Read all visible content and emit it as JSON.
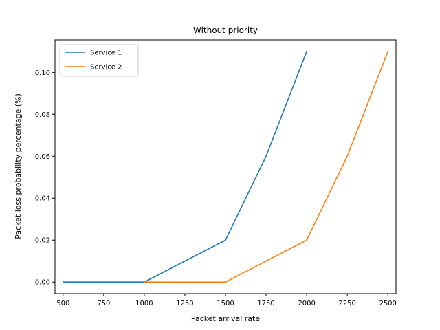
{
  "chart_data": {
    "type": "line",
    "title": "Without priority",
    "xlabel": "Packet arrival rate",
    "ylabel": "Packet loss probability percentage (%)",
    "xlim": [
      450,
      2550
    ],
    "ylim": [
      -0.0055,
      0.1155
    ],
    "xticks": [
      500,
      750,
      1000,
      1250,
      1500,
      1750,
      2000,
      2250,
      2500
    ],
    "yticks": [
      0.0,
      0.02,
      0.04,
      0.06,
      0.08,
      0.1
    ],
    "ytick_labels": [
      "0.00",
      "0.02",
      "0.04",
      "0.06",
      "0.08",
      "0.10"
    ],
    "legend_position": "top-left",
    "grid": false,
    "series": [
      {
        "name": "Service 1",
        "color": "#1f77b4",
        "x": [
          500,
          1000,
          1500,
          1750,
          2000
        ],
        "y": [
          0.0,
          0.0,
          0.02,
          0.06,
          0.11
        ]
      },
      {
        "name": "Service 2",
        "color": "#ff7f0e",
        "x": [
          1000,
          1500,
          2000,
          2250,
          2500
        ],
        "y": [
          0.0,
          0.0,
          0.02,
          0.06,
          0.11
        ]
      }
    ]
  }
}
